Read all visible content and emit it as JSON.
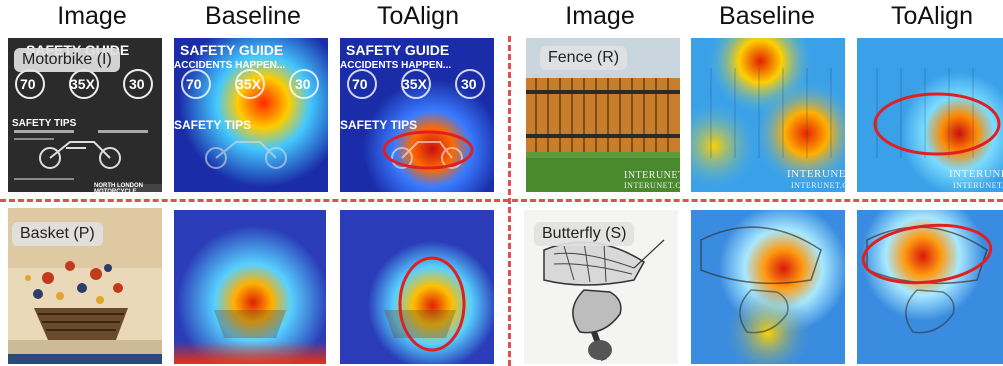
{
  "headers": {
    "left": [
      "Image",
      "Baseline",
      "ToAlign"
    ],
    "right": [
      "Image",
      "Baseline",
      "ToAlign"
    ]
  },
  "labels": {
    "motorbike": "Motorbike (I)",
    "fence": "Fence (R)",
    "basket": "Basket (P)",
    "butterfly": "Butterfly (S)"
  },
  "poster": {
    "title": "SAFETY GUIDE",
    "subtitle": "ACCIDENTS HAPPEN...",
    "stats": [
      "70",
      "35X",
      "30"
    ],
    "tips": "SAFETY TIPS",
    "footer": "NORTH LONDON MOTORCYCLE"
  },
  "watermark": {
    "line1": "INTERUNET",
    "line2": "INTERUNET.COM"
  },
  "colors": {
    "separator": "#e05050",
    "highlight_ring": "#e02020"
  }
}
